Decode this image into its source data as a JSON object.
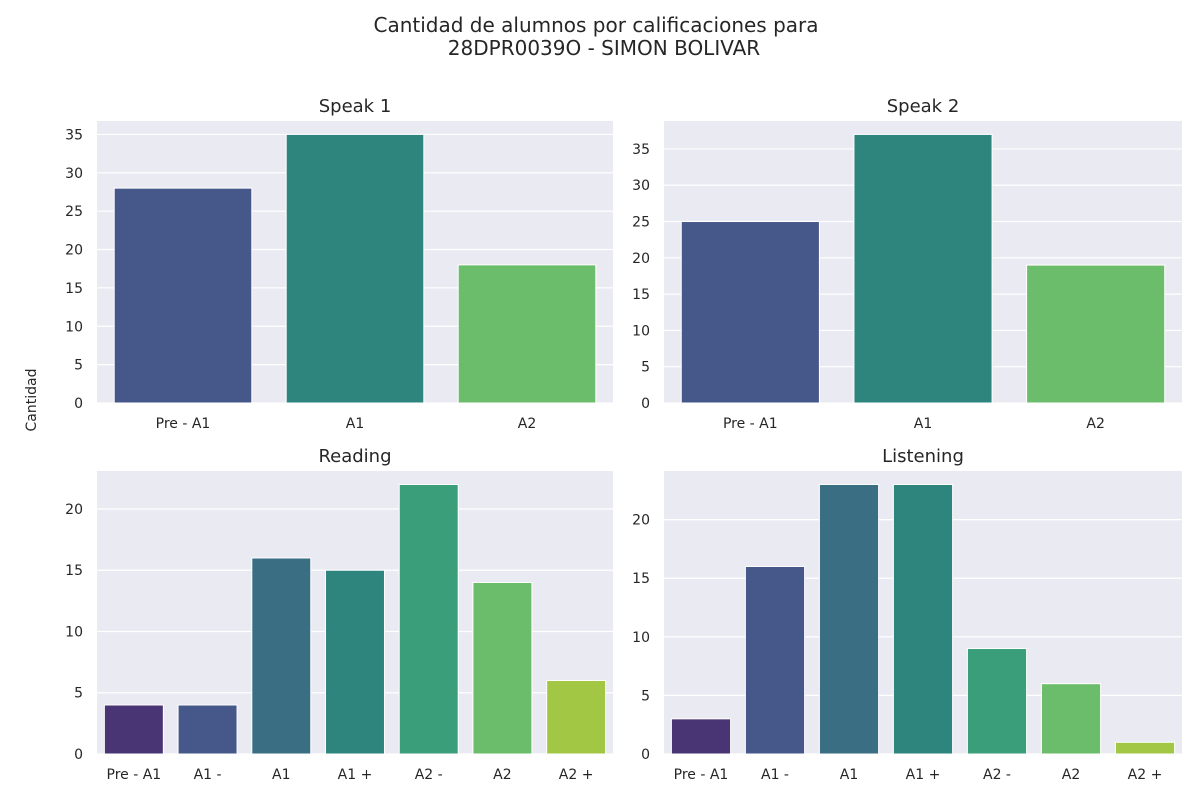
{
  "figure": {
    "title_line1": "Cantidad de alumnos por calificaciones para",
    "title_line2": "28DPR0039O - SIMON BOLIVAR",
    "ylabel": "Cantidad",
    "style": {
      "background": "#eaeaf2",
      "grid": "#ffffff",
      "text": "#262626"
    }
  },
  "chart_data": [
    {
      "type": "bar",
      "title": "Speak 1",
      "categories": [
        "Pre - A1",
        "A1",
        "A2"
      ],
      "values": [
        28,
        35,
        18
      ],
      "ylim": [
        0,
        36.75
      ],
      "yticks": [
        0,
        5,
        10,
        15,
        20,
        25,
        30,
        35
      ],
      "colors": [
        "#46588a",
        "#2e857e",
        "#6bbd6c"
      ],
      "grid": true
    },
    {
      "type": "bar",
      "title": "Speak 2",
      "categories": [
        "Pre - A1",
        "A1",
        "A2"
      ],
      "values": [
        25,
        37,
        19
      ],
      "ylim": [
        0,
        38.85
      ],
      "yticks": [
        0,
        5,
        10,
        15,
        20,
        25,
        30,
        35
      ],
      "colors": [
        "#46588a",
        "#2e857e",
        "#6bbd6c"
      ],
      "grid": true
    },
    {
      "type": "bar",
      "title": "Reading",
      "categories": [
        "Pre - A1",
        "A1 -",
        "A1",
        "A1 +",
        "A2 -",
        "A2",
        "A2 +"
      ],
      "values": [
        4,
        4,
        16,
        15,
        22,
        14,
        6
      ],
      "ylim": [
        0,
        23.1
      ],
      "yticks": [
        0,
        5,
        10,
        15,
        20
      ],
      "colors": [
        "#4a3574",
        "#46588a",
        "#396e83",
        "#2e857e",
        "#3a9e7a",
        "#6bbd6c",
        "#a2c744"
      ],
      "grid": true
    },
    {
      "type": "bar",
      "title": "Listening",
      "categories": [
        "Pre - A1",
        "A1 -",
        "A1",
        "A1 +",
        "A2 -",
        "A2",
        "A2 +"
      ],
      "values": [
        3,
        16,
        23,
        23,
        9,
        6,
        1
      ],
      "ylim": [
        0,
        24.15
      ],
      "yticks": [
        0,
        5,
        10,
        15,
        20
      ],
      "colors": [
        "#4a3574",
        "#46588a",
        "#396e83",
        "#2e857e",
        "#3a9e7a",
        "#6bbd6c",
        "#a2c744"
      ],
      "grid": true
    }
  ]
}
